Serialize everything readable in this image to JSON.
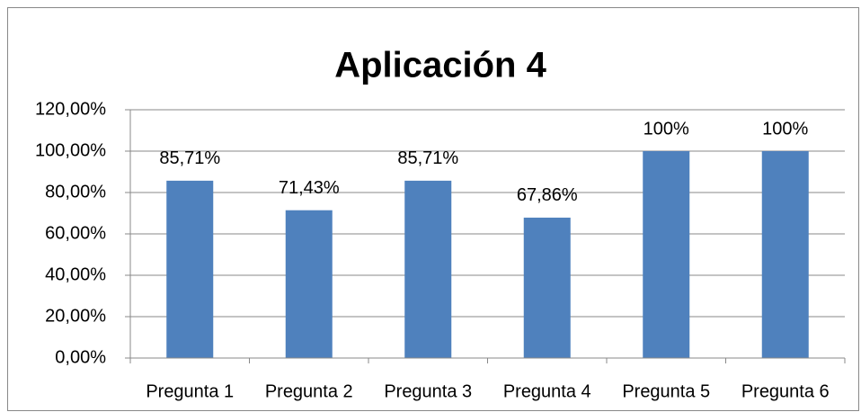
{
  "chart_data": {
    "type": "bar",
    "title": "Aplicación 4",
    "categories": [
      "Pregunta 1",
      "Pregunta 2",
      "Pregunta 3",
      "Pregunta 4",
      "Pregunta 5",
      "Pregunta 6"
    ],
    "values": [
      85.71,
      71.43,
      85.71,
      67.86,
      100,
      100
    ],
    "value_labels": [
      "85,71%",
      "71,43%",
      "85,71%",
      "67,86%",
      "100%",
      "100%"
    ],
    "color": "#4f81bd",
    "ylim": [
      0,
      120
    ],
    "yticks": [
      {
        "value": 0,
        "label": "0,00%"
      },
      {
        "value": 20,
        "label": "20,00%"
      },
      {
        "value": 40,
        "label": "40,00%"
      },
      {
        "value": 60,
        "label": "60,00%"
      },
      {
        "value": 80,
        "label": "80,00%"
      },
      {
        "value": 100,
        "label": "100,00%"
      },
      {
        "value": 120,
        "label": "120,00%"
      }
    ],
    "grid": true
  }
}
